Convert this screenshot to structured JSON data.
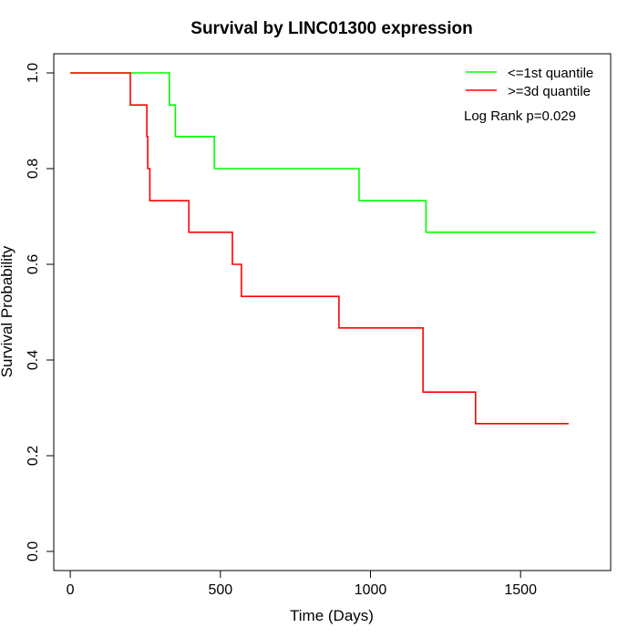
{
  "chart_data": {
    "type": "line",
    "title": "Survival by LINC01300 expression",
    "xlabel": "Time (Days)",
    "ylabel": "Survival Probability",
    "xlim": [
      -55,
      1800
    ],
    "ylim": [
      -0.04,
      1.04
    ],
    "xticks": [
      0,
      500,
      1000,
      1500
    ],
    "yticks": [
      0.0,
      0.2,
      0.4,
      0.6,
      0.8,
      1.0
    ],
    "xtick_labels": [
      "0",
      "500",
      "1000",
      "1500"
    ],
    "ytick_labels": [
      "0.0",
      "0.2",
      "0.4",
      "0.6",
      "0.8",
      "1.0"
    ],
    "grid": false,
    "legend_position": "top-right",
    "annotation": "Log Rank p=0.029",
    "series": [
      {
        "name": "<=1st quantile",
        "color": "#00ff00",
        "steps": [
          [
            0,
            1.0
          ],
          [
            330,
            0.933
          ],
          [
            350,
            0.867
          ],
          [
            480,
            0.8
          ],
          [
            962,
            0.733
          ],
          [
            1185,
            0.667
          ],
          [
            1750,
            0.667
          ]
        ]
      },
      {
        "name": ">=3d quantile",
        "color": "#ff0000",
        "steps": [
          [
            0,
            1.0
          ],
          [
            200,
            0.933
          ],
          [
            255,
            0.867
          ],
          [
            258,
            0.8
          ],
          [
            265,
            0.733
          ],
          [
            395,
            0.667
          ],
          [
            540,
            0.6
          ],
          [
            570,
            0.533
          ],
          [
            895,
            0.467
          ],
          [
            1175,
            0.333
          ],
          [
            1350,
            0.267
          ],
          [
            1660,
            0.267
          ]
        ]
      }
    ]
  }
}
